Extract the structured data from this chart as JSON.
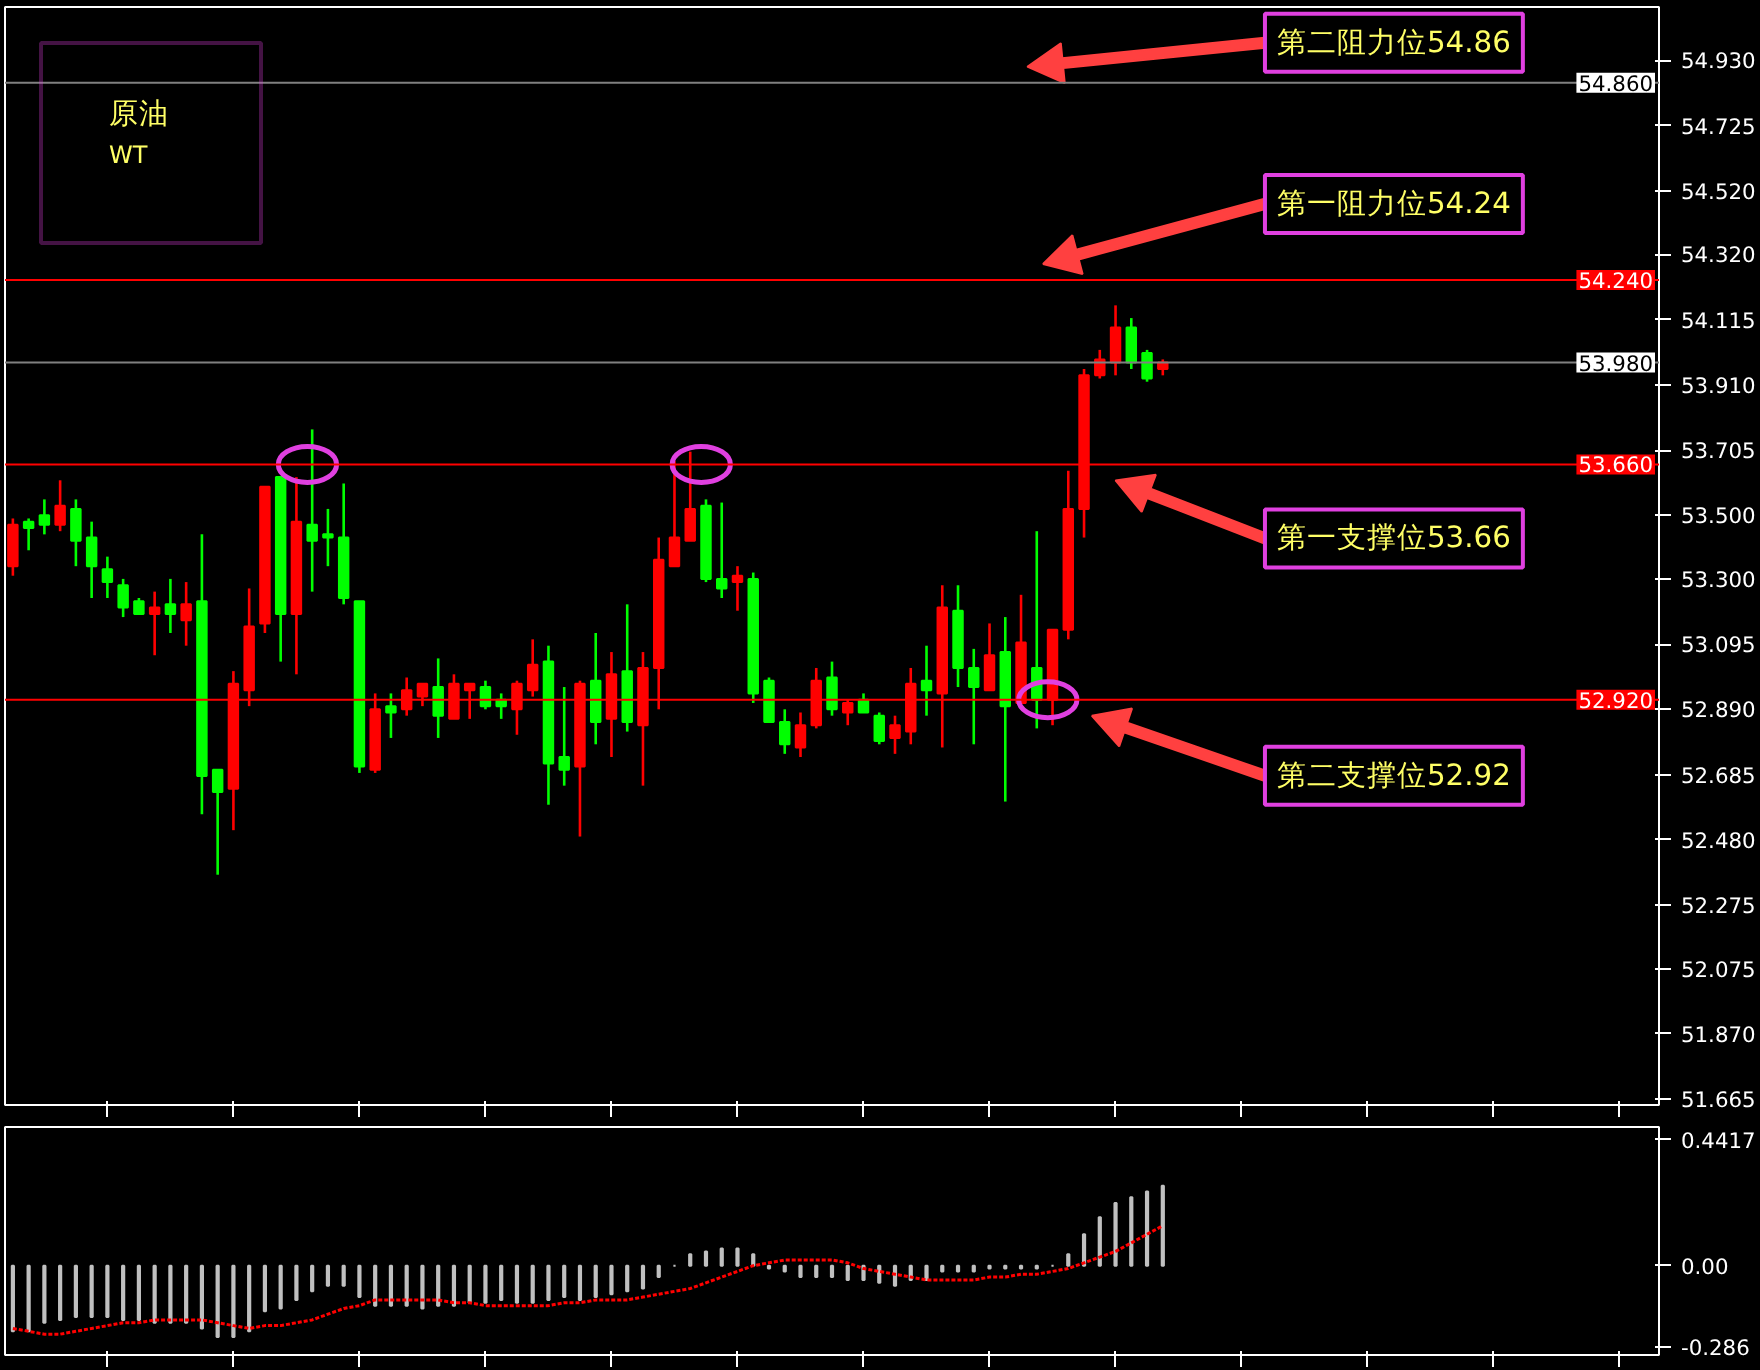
{
  "chart_data": [
    {
      "type": "candlestick",
      "title": "原油",
      "subtitle": "WT",
      "categories": [
        null,
        null,
        null,
        null,
        null,
        null,
        null,
        null,
        null,
        null,
        null,
        null,
        null,
        null,
        null,
        null,
        null,
        null,
        null,
        null,
        null,
        null,
        null,
        null,
        null,
        null,
        null,
        null,
        null,
        null,
        null,
        null,
        null,
        null,
        null,
        null,
        null,
        null,
        null,
        null,
        null,
        null,
        null,
        null,
        null,
        null,
        null,
        null,
        null,
        null,
        null,
        null,
        null,
        null,
        null,
        null,
        null,
        null,
        null,
        null,
        null,
        null,
        null,
        null,
        null,
        null,
        null,
        null,
        null,
        null,
        null,
        null,
        null,
        null,
        null,
        null,
        null,
        null,
        null,
        null,
        null,
        null,
        null,
        null,
        null,
        null,
        null,
        null,
        null,
        null,
        null,
        null,
        null,
        null,
        null,
        null,
        null,
        null,
        null,
        null,
        null,
        null,
        null,
        null,
        null
      ],
      "ohlc": [
        [
          53.34,
          53.49,
          53.31,
          53.47
        ],
        [
          53.48,
          53.49,
          53.39,
          53.46
        ],
        [
          53.5,
          53.55,
          53.44,
          53.47
        ],
        [
          53.47,
          53.61,
          53.45,
          53.53
        ],
        [
          53.52,
          53.55,
          53.34,
          53.42
        ],
        [
          53.43,
          53.48,
          53.24,
          53.34
        ],
        [
          53.33,
          53.37,
          53.24,
          53.29
        ],
        [
          53.28,
          53.3,
          53.18,
          53.21
        ],
        [
          53.23,
          53.24,
          53.19,
          53.19
        ],
        [
          53.19,
          53.26,
          53.06,
          53.21
        ],
        [
          53.22,
          53.3,
          53.13,
          53.19
        ],
        [
          53.17,
          53.29,
          53.09,
          53.22
        ],
        [
          53.23,
          53.44,
          52.56,
          52.68
        ],
        [
          52.7,
          52.7,
          52.37,
          52.63
        ],
        [
          52.64,
          53.01,
          52.51,
          52.97
        ],
        [
          52.95,
          53.27,
          52.9,
          53.15
        ],
        [
          53.16,
          53.59,
          53.13,
          53.59
        ],
        [
          53.62,
          53.62,
          53.04,
          53.19
        ],
        [
          53.19,
          53.62,
          53.0,
          53.48
        ],
        [
          53.47,
          53.77,
          53.26,
          53.42
        ],
        [
          53.44,
          53.52,
          53.34,
          53.43
        ],
        [
          53.43,
          53.6,
          53.22,
          53.24
        ],
        [
          53.23,
          53.23,
          52.69,
          52.71
        ],
        [
          52.7,
          52.94,
          52.69,
          52.89
        ],
        [
          52.9,
          52.94,
          52.8,
          52.88
        ],
        [
          52.89,
          52.99,
          52.87,
          52.95
        ],
        [
          52.93,
          52.97,
          52.9,
          52.97
        ],
        [
          52.96,
          53.05,
          52.8,
          52.87
        ],
        [
          52.86,
          53.0,
          52.86,
          52.97
        ],
        [
          52.95,
          52.97,
          52.86,
          52.97
        ],
        [
          52.96,
          52.98,
          52.89,
          52.9
        ],
        [
          52.92,
          52.94,
          52.86,
          52.9
        ],
        [
          52.89,
          52.98,
          52.81,
          52.97
        ],
        [
          52.95,
          53.11,
          52.93,
          53.03
        ],
        [
          53.04,
          53.09,
          52.59,
          52.72
        ],
        [
          52.74,
          52.96,
          52.65,
          52.7
        ],
        [
          52.71,
          52.98,
          52.49,
          52.97
        ],
        [
          52.98,
          53.13,
          52.78,
          52.85
        ],
        [
          52.86,
          53.07,
          52.74,
          53.0
        ],
        [
          53.01,
          53.22,
          52.82,
          52.85
        ],
        [
          52.84,
          53.07,
          52.65,
          53.02
        ],
        [
          53.02,
          53.43,
          52.89,
          53.36
        ],
        [
          53.34,
          53.67,
          53.34,
          53.43
        ],
        [
          53.42,
          53.7,
          53.42,
          53.52
        ],
        [
          53.53,
          53.55,
          53.29,
          53.3
        ],
        [
          53.3,
          53.54,
          53.24,
          53.27
        ],
        [
          53.29,
          53.34,
          53.2,
          53.31
        ],
        [
          53.3,
          53.32,
          52.91,
          52.94
        ],
        [
          52.98,
          52.99,
          52.85,
          52.85
        ],
        [
          52.85,
          52.89,
          52.75,
          52.78
        ],
        [
          52.77,
          52.88,
          52.74,
          52.84
        ],
        [
          52.84,
          53.02,
          52.83,
          52.98
        ],
        [
          52.99,
          53.04,
          52.87,
          52.89
        ],
        [
          52.88,
          52.92,
          52.84,
          52.91
        ],
        [
          52.92,
          52.94,
          52.88,
          52.88
        ],
        [
          52.87,
          52.88,
          52.78,
          52.79
        ],
        [
          52.8,
          52.87,
          52.75,
          52.84
        ],
        [
          52.82,
          53.02,
          52.78,
          52.97
        ],
        [
          52.98,
          53.09,
          52.87,
          52.95
        ],
        [
          52.94,
          53.28,
          52.77,
          53.21
        ],
        [
          53.2,
          53.28,
          52.96,
          53.02
        ],
        [
          53.02,
          53.08,
          52.78,
          52.96
        ],
        [
          52.95,
          53.16,
          52.95,
          53.06
        ],
        [
          53.07,
          53.18,
          52.6,
          52.9
        ],
        [
          52.91,
          53.25,
          52.91,
          53.1
        ],
        [
          53.02,
          53.45,
          52.83,
          52.92
        ],
        [
          52.92,
          53.14,
          52.84,
          53.14
        ],
        [
          53.14,
          53.64,
          53.11,
          53.52
        ],
        [
          53.52,
          53.96,
          53.43,
          53.94
        ],
        [
          53.94,
          54.02,
          53.93,
          53.99
        ],
        [
          53.98,
          54.16,
          53.94,
          54.09
        ],
        [
          54.09,
          54.12,
          53.96,
          53.98
        ],
        [
          54.01,
          54.02,
          53.92,
          53.93
        ],
        [
          53.96,
          53.99,
          53.94,
          53.98
        ],
        null,
        null,
        null,
        null,
        null,
        null,
        null,
        null,
        null,
        null,
        null,
        null,
        null,
        null,
        null,
        null,
        null,
        null,
        null,
        null,
        null,
        null,
        null,
        null,
        null,
        null,
        null,
        null,
        null,
        null,
        null
      ],
      "colors": [
        "#ff0000",
        "#00ff00",
        "#00ff00",
        "#ff0000",
        "#00ff00",
        "#00ff00",
        "#00ff00",
        "#00ff00",
        "#00ff00",
        "#ff0000",
        "#00ff00",
        "#ff0000",
        "#00ff00",
        "#00ff00",
        "#ff0000",
        "#ff0000",
        "#ff0000",
        "#00ff00",
        "#ff0000",
        "#00ff00",
        "#00ff00",
        "#00ff00",
        "#00ff00",
        "#ff0000",
        "#00ff00",
        "#ff0000",
        "#ff0000",
        "#00ff00",
        "#ff0000",
        "#ff0000",
        "#00ff00",
        "#00ff00",
        "#ff0000",
        "#ff0000",
        "#00ff00",
        "#00ff00",
        "#ff0000",
        "#00ff00",
        "#ff0000",
        "#00ff00",
        "#ff0000",
        "#ff0000",
        "#ff0000",
        "#ff0000",
        "#00ff00",
        "#00ff00",
        "#ff0000",
        "#00ff00",
        "#00ff00",
        "#00ff00",
        "#ff0000",
        "#ff0000",
        "#00ff00",
        "#ff0000",
        "#00ff00",
        "#00ff00",
        "#ff0000",
        "#ff0000",
        "#00ff00",
        "#ff0000",
        "#00ff00",
        "#00ff00",
        "#ff0000",
        "#00ff00",
        "#ff0000",
        "#00ff00",
        "#ff0000",
        "#ff0000",
        "#ff0000",
        "#ff0000",
        "#ff0000",
        "#00ff00",
        "#00ff00",
        "#ff0000",
        null,
        null,
        null,
        null,
        null,
        null,
        null,
        null,
        null,
        null,
        null,
        null,
        null,
        null,
        null,
        null,
        null,
        null,
        null,
        null,
        null,
        null,
        null,
        null,
        null,
        null,
        null,
        null,
        null,
        null,
        null
      ],
      "ylim": [
        51.646,
        55.098
      ],
      "yticks": [
        {
          "value": 54.93,
          "label": "54.930"
        },
        54.725,
        {
          "value": 54.52,
          "label": "54.520"
        },
        {
          "value": 54.32,
          "label": "54.320"
        },
        54.115,
        {
          "value": 53.91,
          "label": "53.910"
        },
        53.705,
        {
          "value": 53.5,
          "label": "53.500"
        },
        {
          "value": 53.3,
          "label": "53.300"
        },
        53.095,
        {
          "value": 52.89,
          "label": "52.890"
        },
        52.685,
        {
          "value": 52.48,
          "label": "52.480"
        },
        52.275,
        52.075,
        {
          "value": 51.87,
          "label": "51.870"
        },
        51.665
      ],
      "ref_lines": [
        {
          "axis": "y",
          "value": 54.86,
          "label": "54.860",
          "color": "#808080"
        },
        {
          "axis": "y",
          "value": 54.24,
          "label": "54.240",
          "color": "#ff0000"
        },
        {
          "axis": "y",
          "value": 53.98,
          "label": "53.980",
          "color": "#808080"
        },
        {
          "axis": "y",
          "value": 53.66,
          "label": "53.660",
          "color": "#ff0000"
        },
        {
          "axis": "y",
          "value": 52.92,
          "label": "52.920",
          "color": "#ff0000"
        }
      ],
      "annotations": [
        {
          "text": "第二阻力位54.86",
          "y": 54.86
        },
        {
          "text": "第一阻力位54.24",
          "y": 54.24
        },
        {
          "text": "第一支撑位53.66",
          "y": 53.66
        },
        {
          "text": "第二支撑位52.92",
          "y": 52.92
        }
      ],
      "tick_labels": "y"
    },
    {
      "type": "bar",
      "categories": [
        null,
        null,
        null,
        null,
        null,
        null,
        null,
        null,
        null,
        null,
        null,
        null,
        null,
        null,
        null,
        null,
        null,
        null,
        null,
        null,
        null,
        null,
        null,
        null,
        null,
        null,
        null,
        null,
        null,
        null,
        null,
        null,
        null,
        null,
        null,
        null,
        null,
        null,
        null,
        null,
        null,
        null,
        null,
        null,
        null,
        null,
        null,
        null,
        null,
        null,
        null,
        null,
        null,
        null,
        null,
        null,
        null,
        null,
        null,
        null,
        null,
        null,
        null,
        null,
        null,
        null,
        null,
        null,
        null,
        null,
        null,
        null,
        null,
        null,
        null,
        null,
        null,
        null,
        null,
        null,
        null,
        null,
        null,
        null,
        null,
        null,
        null,
        null,
        null,
        null,
        null,
        null,
        null,
        null,
        null,
        null,
        null,
        null,
        null,
        null,
        null,
        null,
        null,
        null,
        null
      ],
      "series": [
        {
          "type": "bar",
          "color": "#c0c0c0",
          "values": [
            -0.23,
            -0.23,
            -0.2,
            -0.19,
            -0.18,
            -0.18,
            -0.18,
            -0.19,
            -0.19,
            -0.2,
            -0.2,
            -0.2,
            -0.22,
            -0.25,
            -0.25,
            -0.23,
            -0.16,
            -0.15,
            -0.12,
            -0.09,
            -0.07,
            -0.07,
            -0.11,
            -0.14,
            -0.14,
            -0.14,
            -0.15,
            -0.14,
            -0.14,
            -0.13,
            -0.13,
            -0.12,
            -0.13,
            -0.13,
            -0.12,
            -0.11,
            -0.12,
            -0.11,
            -0.1,
            -0.09,
            -0.08,
            -0.04,
            0.0,
            0.04,
            0.05,
            0.06,
            0.06,
            0.04,
            -0.01,
            -0.02,
            -0.04,
            -0.04,
            -0.04,
            -0.05,
            -0.05,
            -0.06,
            -0.07,
            -0.05,
            -0.05,
            -0.02,
            -0.02,
            -0.02,
            -0.01,
            -0.01,
            -0.01,
            -0.01,
            0.0,
            0.04,
            0.11,
            0.17,
            0.22,
            0.24,
            0.26,
            0.28,
            null,
            null,
            null,
            null,
            null,
            null,
            null,
            null,
            null,
            null,
            null,
            null,
            null,
            null,
            null,
            null,
            null,
            null,
            null,
            null,
            null,
            null,
            null,
            null,
            null,
            null,
            null,
            null,
            null,
            null,
            null
          ]
        },
        {
          "type": "line",
          "color": "#ff0000",
          "line_style": "dotted",
          "values": [
            -0.22,
            -0.23,
            -0.24,
            -0.24,
            -0.23,
            -0.22,
            -0.21,
            -0.2,
            -0.2,
            -0.19,
            -0.19,
            -0.19,
            -0.19,
            -0.2,
            -0.21,
            -0.22,
            -0.21,
            -0.21,
            -0.2,
            -0.19,
            -0.17,
            -0.15,
            -0.14,
            -0.12,
            -0.12,
            -0.12,
            -0.12,
            -0.12,
            -0.13,
            -0.13,
            -0.14,
            -0.14,
            -0.14,
            -0.14,
            -0.14,
            -0.13,
            -0.13,
            -0.12,
            -0.12,
            -0.12,
            -0.11,
            -0.1,
            -0.09,
            -0.08,
            -0.06,
            -0.04,
            -0.02,
            0.0,
            0.01,
            0.02,
            0.02,
            0.02,
            0.02,
            0.01,
            -0.01,
            -0.02,
            -0.03,
            -0.04,
            -0.05,
            -0.05,
            -0.05,
            -0.05,
            -0.04,
            -0.04,
            -0.03,
            -0.03,
            -0.02,
            -0.01,
            0.01,
            0.03,
            0.05,
            0.08,
            0.11,
            0.14,
            null,
            null,
            null,
            null,
            null,
            null,
            null,
            null,
            null,
            null,
            null,
            null,
            null,
            null,
            null,
            null,
            null,
            null,
            null,
            null,
            null,
            null,
            null,
            null,
            null,
            null,
            null,
            null,
            null,
            null,
            null
          ]
        }
      ],
      "ylim": [
        -0.313,
        0.486
      ],
      "yticks": [
        0.4417,
        {
          "value": 0,
          "label": "0.00"
        },
        -0.286
      ],
      "tick_labels": "y"
    }
  ]
}
